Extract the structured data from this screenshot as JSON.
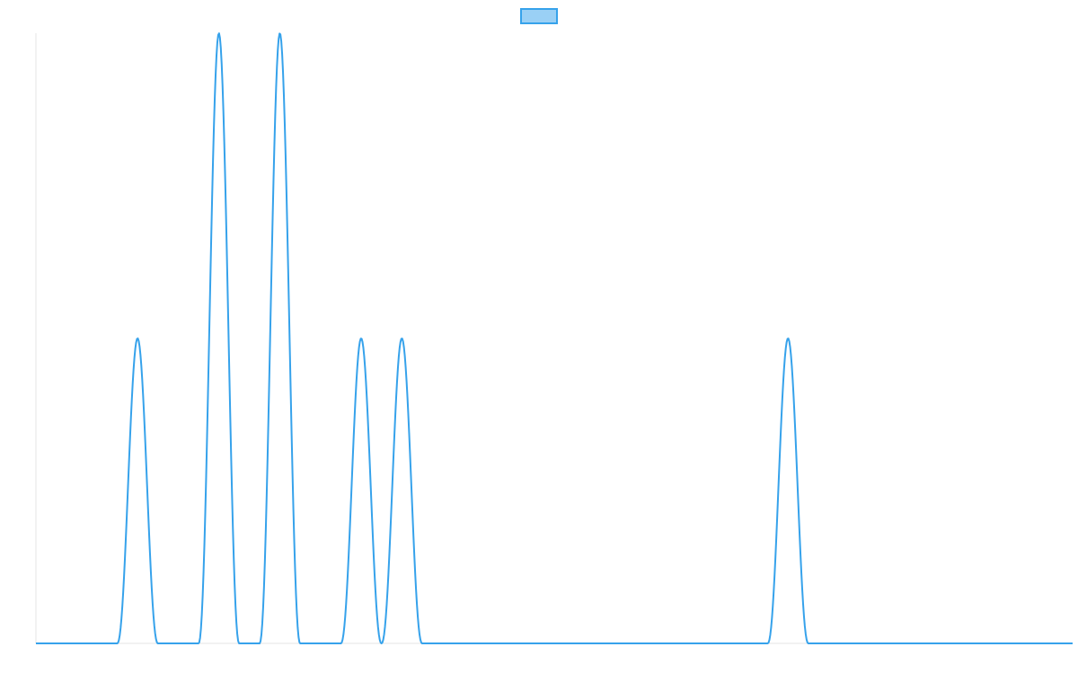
{
  "chart_data": {
    "type": "line",
    "title": "",
    "xlabel": "",
    "ylabel": "",
    "xlim": [
      0,
      51
    ],
    "ylim": [
      0,
      3
    ],
    "grid": false,
    "legend": {
      "position": "top-center",
      "entries": [
        {
          "name": "",
          "fill": "#9ad0f5",
          "stroke": "#36a2eb"
        }
      ]
    },
    "series": [
      {
        "name": "",
        "color": "#36a2eb",
        "peaks": [
          {
            "x": 5,
            "height": 1.5
          },
          {
            "x": 9,
            "height": 3
          },
          {
            "x": 12,
            "height": 3
          },
          {
            "x": 16,
            "height": 1.5
          },
          {
            "x": 18,
            "height": 1.5
          },
          {
            "x": 37,
            "height": 1.5
          }
        ]
      }
    ]
  }
}
